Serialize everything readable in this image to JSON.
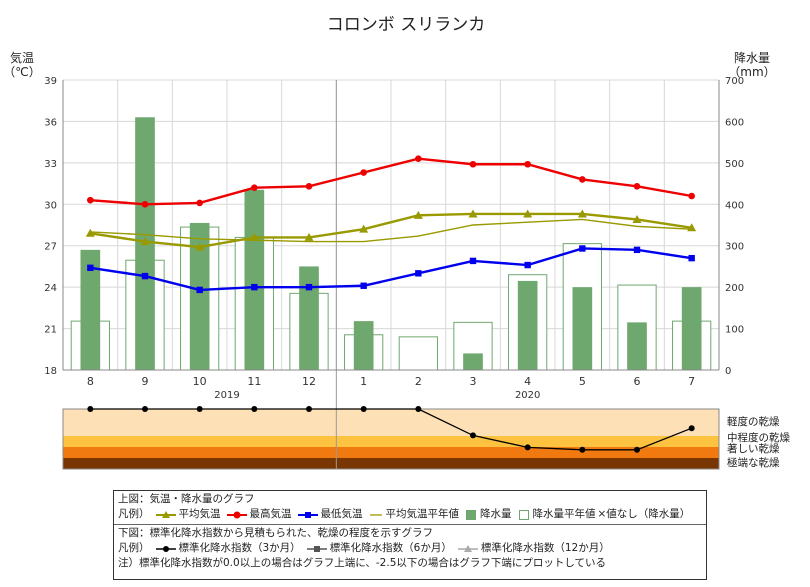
{
  "title": "コロンボ スリランカ",
  "chart_data": {
    "type": "line+bar",
    "categories": [
      "8",
      "9",
      "10",
      "11",
      "12",
      "1",
      "2",
      "3",
      "4",
      "5",
      "6",
      "7"
    ],
    "year_labels": [
      {
        "label": "2019",
        "index": 2.5
      },
      {
        "label": "2020",
        "index": 8
      }
    ],
    "left_axis": {
      "label_line1": "気温",
      "label_line2": "（℃）",
      "min": 18,
      "max": 39,
      "ticks": [
        18,
        21,
        24,
        27,
        30,
        33,
        36,
        39
      ]
    },
    "right_axis": {
      "label_line1": "降水量",
      "label_line2": "（mm）",
      "min": 0,
      "max": 700,
      "ticks": [
        0,
        100,
        200,
        300,
        400,
        500,
        600,
        700
      ]
    },
    "series": [
      {
        "name": "平均気温",
        "color": "#999900",
        "marker": "triangle",
        "values": [
          27.9,
          27.3,
          26.9,
          27.6,
          27.6,
          28.2,
          29.2,
          29.3,
          29.3,
          29.3,
          28.9,
          28.3
        ]
      },
      {
        "name": "最高気温",
        "color": "#ee0000",
        "marker": "circle",
        "values": [
          30.3,
          30.0,
          30.1,
          31.2,
          31.3,
          32.3,
          33.3,
          32.9,
          32.9,
          31.8,
          31.3,
          30.6
        ]
      },
      {
        "name": "最低気温",
        "color": "#0000ee",
        "marker": "square",
        "values": [
          25.4,
          24.8,
          23.8,
          24.0,
          24.0,
          24.1,
          25.0,
          25.9,
          25.6,
          26.8,
          26.7,
          26.1
        ]
      },
      {
        "name": "平均気温平年値",
        "color": "#999900",
        "marker": "none",
        "values": [
          28.0,
          27.8,
          27.5,
          27.4,
          27.3,
          27.3,
          27.7,
          28.5,
          28.7,
          28.9,
          28.4,
          28.2
        ]
      }
    ],
    "precip": {
      "name": "降水量",
      "color": "#6fa86f",
      "values": [
        290,
        610,
        355,
        435,
        250,
        118,
        null,
        40,
        215,
        200,
        115,
        200
      ]
    },
    "precip_normal": {
      "name": "降水量平年値",
      "values": [
        118,
        265,
        345,
        320,
        185,
        85,
        80,
        115,
        230,
        305,
        205,
        118
      ]
    },
    "no_value_label": "×値なし（降水量）",
    "drought": {
      "levels": [
        "軽度の乾燥",
        "中程度の乾燥",
        "著しい乾燥",
        "極端な乾燥"
      ],
      "series_3m": [
        0.0,
        0.0,
        0.0,
        0.0,
        0.0,
        0.0,
        0.0,
        -1.1,
        -1.6,
        -1.7,
        -1.7,
        -0.8
      ]
    }
  },
  "legend": {
    "top_title": "上図：気温・降水量のグラフ",
    "top_prefix": "凡例）",
    "top_items": [
      "平均気温",
      "最高気温",
      "最低気温",
      "平均気温平年値",
      "降水量",
      "降水量平年値",
      "×値なし（降水量）"
    ],
    "bottom_title": "下図：標準化降水指数から見積もられた、乾燥の程度を示すグラフ",
    "bottom_prefix": "凡例）",
    "bottom_items": [
      "標準化降水指数（3か月）",
      "標準化降水指数（6か月）",
      "標準化降水指数（12か月）"
    ],
    "note": "注）標準化降水指数が0.0以上の場合はグラフ上端に、-2.5以下の場合はグラフ下端にプロットしている"
  }
}
